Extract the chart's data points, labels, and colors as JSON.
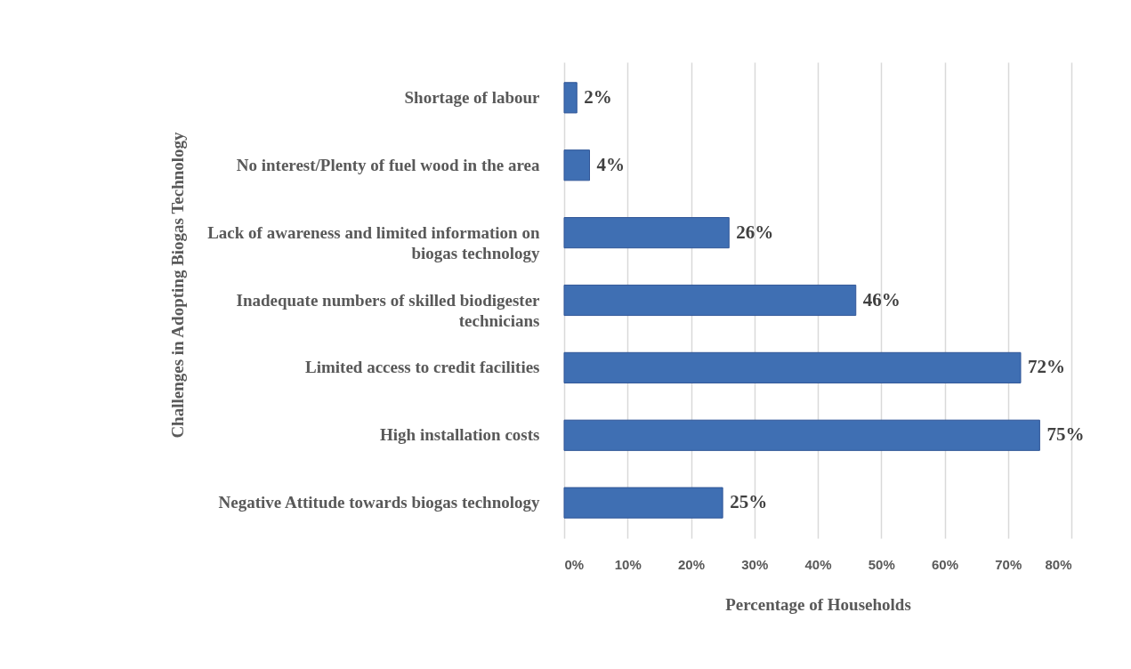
{
  "chart_data": {
    "type": "bar",
    "orientation": "horizontal",
    "categories": [
      "Shortage of labour",
      "No interest/Plenty of fuel wood in the area",
      "Lack of awareness and limited information on biogas technology",
      "Inadequate numbers of skilled biodigester technicians",
      "Limited access to credit facilities",
      "High installation costs",
      "Negative Attitude towards biogas technology"
    ],
    "values": [
      2,
      4,
      26,
      46,
      72,
      75,
      25
    ],
    "value_labels": [
      "2%",
      "4%",
      "26%",
      "46%",
      "72%",
      "75%",
      "25%"
    ],
    "color": "#3f6fb3",
    "xlim": [
      0,
      80
    ],
    "xticks": [
      {
        "value": 0,
        "label": "0%"
      },
      {
        "value": 10,
        "label": "10%"
      },
      {
        "value": 20,
        "label": "20%"
      },
      {
        "value": 30,
        "label": "30%"
      },
      {
        "value": 40,
        "label": "40%"
      },
      {
        "value": 50,
        "label": "50%"
      },
      {
        "value": 60,
        "label": "60%"
      },
      {
        "value": 70,
        "label": "70%"
      },
      {
        "value": 80,
        "label": "80%"
      }
    ],
    "xlabel": "Percentage of Households",
    "ylabel": "Challenges in Adopting Biogas Technology",
    "grid": "x"
  }
}
